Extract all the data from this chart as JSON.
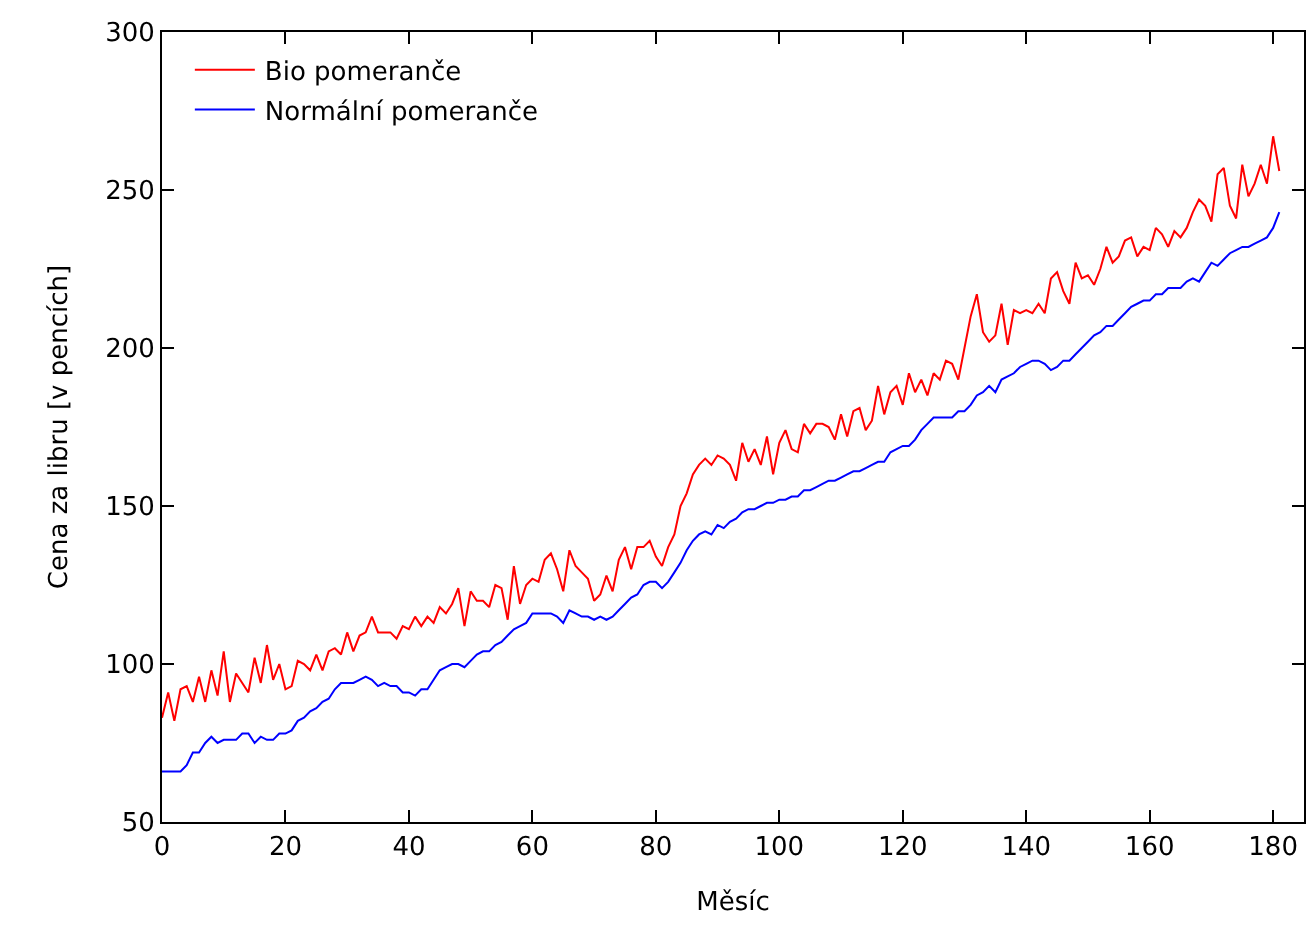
{
  "chart_data": {
    "type": "line",
    "xlabel": "Měsíc",
    "ylabel": "Cena za libru [v pencích]",
    "x": [
      0,
      1,
      2,
      3,
      4,
      5,
      6,
      7,
      8,
      9,
      10,
      11,
      12,
      13,
      14,
      15,
      16,
      17,
      18,
      19,
      20,
      21,
      22,
      23,
      24,
      25,
      26,
      27,
      28,
      29,
      30,
      31,
      32,
      33,
      34,
      35,
      36,
      37,
      38,
      39,
      40,
      41,
      42,
      43,
      44,
      45,
      46,
      47,
      48,
      49,
      50,
      51,
      52,
      53,
      54,
      55,
      56,
      57,
      58,
      59,
      60,
      61,
      62,
      63,
      64,
      65,
      66,
      67,
      68,
      69,
      70,
      71,
      72,
      73,
      74,
      75,
      76,
      77,
      78,
      79,
      80,
      81,
      82,
      83,
      84,
      85,
      86,
      87,
      88,
      89,
      90,
      91,
      92,
      93,
      94,
      95,
      96,
      97,
      98,
      99,
      100,
      101,
      102,
      103,
      104,
      105,
      106,
      107,
      108,
      109,
      110,
      111,
      112,
      113,
      114,
      115,
      116,
      117,
      118,
      119,
      120,
      121,
      122,
      123,
      124,
      125,
      126,
      127,
      128,
      129,
      130,
      131,
      132,
      133,
      134,
      135,
      136,
      137,
      138,
      139,
      140,
      141,
      142,
      143,
      144,
      145,
      146,
      147,
      148,
      149,
      150,
      151,
      152,
      153,
      154,
      155,
      156,
      157,
      158,
      159,
      160,
      161,
      162,
      163,
      164,
      165,
      166,
      167,
      168,
      169,
      170,
      171,
      172,
      173,
      174,
      175,
      176,
      177,
      178,
      179,
      180,
      181
    ],
    "series": [
      {
        "name": "Bio pomeranče",
        "color": "#ff0000",
        "values": [
          83,
          91,
          82,
          92,
          93,
          88,
          96,
          88,
          98,
          90,
          104,
          88,
          97,
          94,
          91,
          102,
          94,
          106,
          95,
          100,
          92,
          93,
          101,
          100,
          98,
          103,
          98,
          104,
          105,
          103,
          110,
          104,
          109,
          110,
          115,
          110,
          110,
          110,
          108,
          112,
          111,
          115,
          112,
          115,
          113,
          118,
          116,
          119,
          124,
          112,
          123,
          120,
          120,
          118,
          125,
          124,
          114,
          131,
          119,
          125,
          127,
          126,
          133,
          135,
          130,
          123,
          136,
          131,
          129,
          127,
          120,
          122,
          128,
          123,
          133,
          137,
          130,
          137,
          137,
          139,
          134,
          131,
          137,
          141,
          150,
          154,
          160,
          163,
          165,
          163,
          166,
          165,
          163,
          158,
          170,
          164,
          168,
          163,
          172,
          160,
          170,
          174,
          168,
          167,
          176,
          173,
          176,
          176,
          175,
          171,
          179,
          172,
          180,
          181,
          174,
          177,
          188,
          179,
          186,
          188,
          182,
          192,
          186,
          190,
          185,
          192,
          190,
          196,
          195,
          190,
          200,
          210,
          217,
          205,
          202,
          204,
          214,
          201,
          212,
          211,
          212,
          211,
          214,
          211,
          222,
          224,
          218,
          214,
          227,
          222,
          223,
          220,
          225,
          232,
          227,
          229,
          234,
          235,
          229,
          232,
          231,
          238,
          236,
          232,
          237,
          235,
          238,
          243,
          247,
          245,
          240,
          255,
          257,
          245,
          241,
          258,
          248,
          252,
          258,
          252,
          267,
          256
        ]
      },
      {
        "name": "Normální pomeranče",
        "color": "#0000ff",
        "values": [
          66,
          66,
          66,
          66,
          68,
          72,
          72,
          75,
          77,
          75,
          76,
          76,
          76,
          78,
          78,
          75,
          77,
          76,
          76,
          78,
          78,
          79,
          82,
          83,
          85,
          86,
          88,
          89,
          92,
          94,
          94,
          94,
          95,
          96,
          95,
          93,
          94,
          93,
          93,
          91,
          91,
          90,
          92,
          92,
          95,
          98,
          99,
          100,
          100,
          99,
          101,
          103,
          104,
          104,
          106,
          107,
          109,
          111,
          112,
          113,
          116,
          116,
          116,
          116,
          115,
          113,
          117,
          116,
          115,
          115,
          114,
          115,
          114,
          115,
          117,
          119,
          121,
          122,
          125,
          126,
          126,
          124,
          126,
          129,
          132,
          136,
          139,
          141,
          142,
          141,
          144,
          143,
          145,
          146,
          148,
          149,
          149,
          150,
          151,
          151,
          152,
          152,
          153,
          153,
          155,
          155,
          156,
          157,
          158,
          158,
          159,
          160,
          161,
          161,
          162,
          163,
          164,
          164,
          167,
          168,
          169,
          169,
          171,
          174,
          176,
          178,
          178,
          178,
          178,
          180,
          180,
          182,
          185,
          186,
          188,
          186,
          190,
          191,
          192,
          194,
          195,
          196,
          196,
          195,
          193,
          194,
          196,
          196,
          198,
          200,
          202,
          204,
          205,
          207,
          207,
          209,
          211,
          213,
          214,
          215,
          215,
          217,
          217,
          219,
          219,
          219,
          221,
          222,
          221,
          224,
          227,
          226,
          228,
          230,
          231,
          232,
          232,
          233,
          234,
          235,
          238,
          243
        ]
      }
    ],
    "xlim": [
      0,
      185
    ],
    "xticks": [
      0,
      20,
      40,
      60,
      80,
      100,
      120,
      140,
      160,
      180
    ],
    "ylim": [
      50,
      300
    ],
    "yticks": [
      50,
      100,
      150,
      200,
      250,
      300
    ],
    "legend": "top left",
    "grid": false,
    "marker": "none",
    "line_style": "solid"
  }
}
